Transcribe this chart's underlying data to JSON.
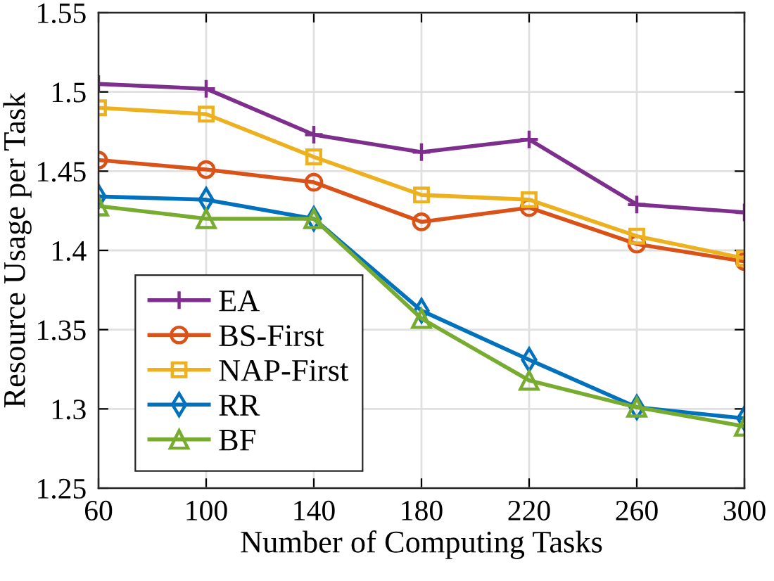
{
  "chart_data": {
    "type": "line",
    "xlabel": "Number of Computing Tasks",
    "ylabel": "Resource Usage per Task",
    "x": [
      60,
      100,
      140,
      180,
      220,
      260,
      300
    ],
    "series": [
      {
        "name": "EA",
        "color": "#7e2f8e",
        "marker": "cross",
        "values": [
          1.505,
          1.502,
          1.473,
          1.462,
          1.47,
          1.429,
          1.424
        ]
      },
      {
        "name": "BS-First",
        "color": "#d95319",
        "marker": "circle",
        "values": [
          1.457,
          1.451,
          1.443,
          1.418,
          1.427,
          1.404,
          1.393
        ]
      },
      {
        "name": "NAP-First",
        "color": "#edb120",
        "marker": "square",
        "values": [
          1.49,
          1.486,
          1.459,
          1.435,
          1.432,
          1.409,
          1.395
        ]
      },
      {
        "name": "RR",
        "color": "#0072bd",
        "marker": "diamond",
        "values": [
          1.434,
          1.432,
          1.42,
          1.362,
          1.331,
          1.301,
          1.294
        ]
      },
      {
        "name": "BF",
        "color": "#77ac30",
        "marker": "triangle",
        "values": [
          1.428,
          1.42,
          1.42,
          1.357,
          1.318,
          1.301,
          1.289
        ]
      }
    ],
    "xlim": [
      60,
      300
    ],
    "xticks": [
      60,
      100,
      140,
      180,
      220,
      260,
      300
    ],
    "ylim": [
      1.25,
      1.55
    ],
    "yticks": [
      1.25,
      1.3,
      1.35,
      1.4,
      1.45,
      1.5,
      1.55
    ],
    "grid": true,
    "legend": "bottom left",
    "line_style": "solid"
  }
}
